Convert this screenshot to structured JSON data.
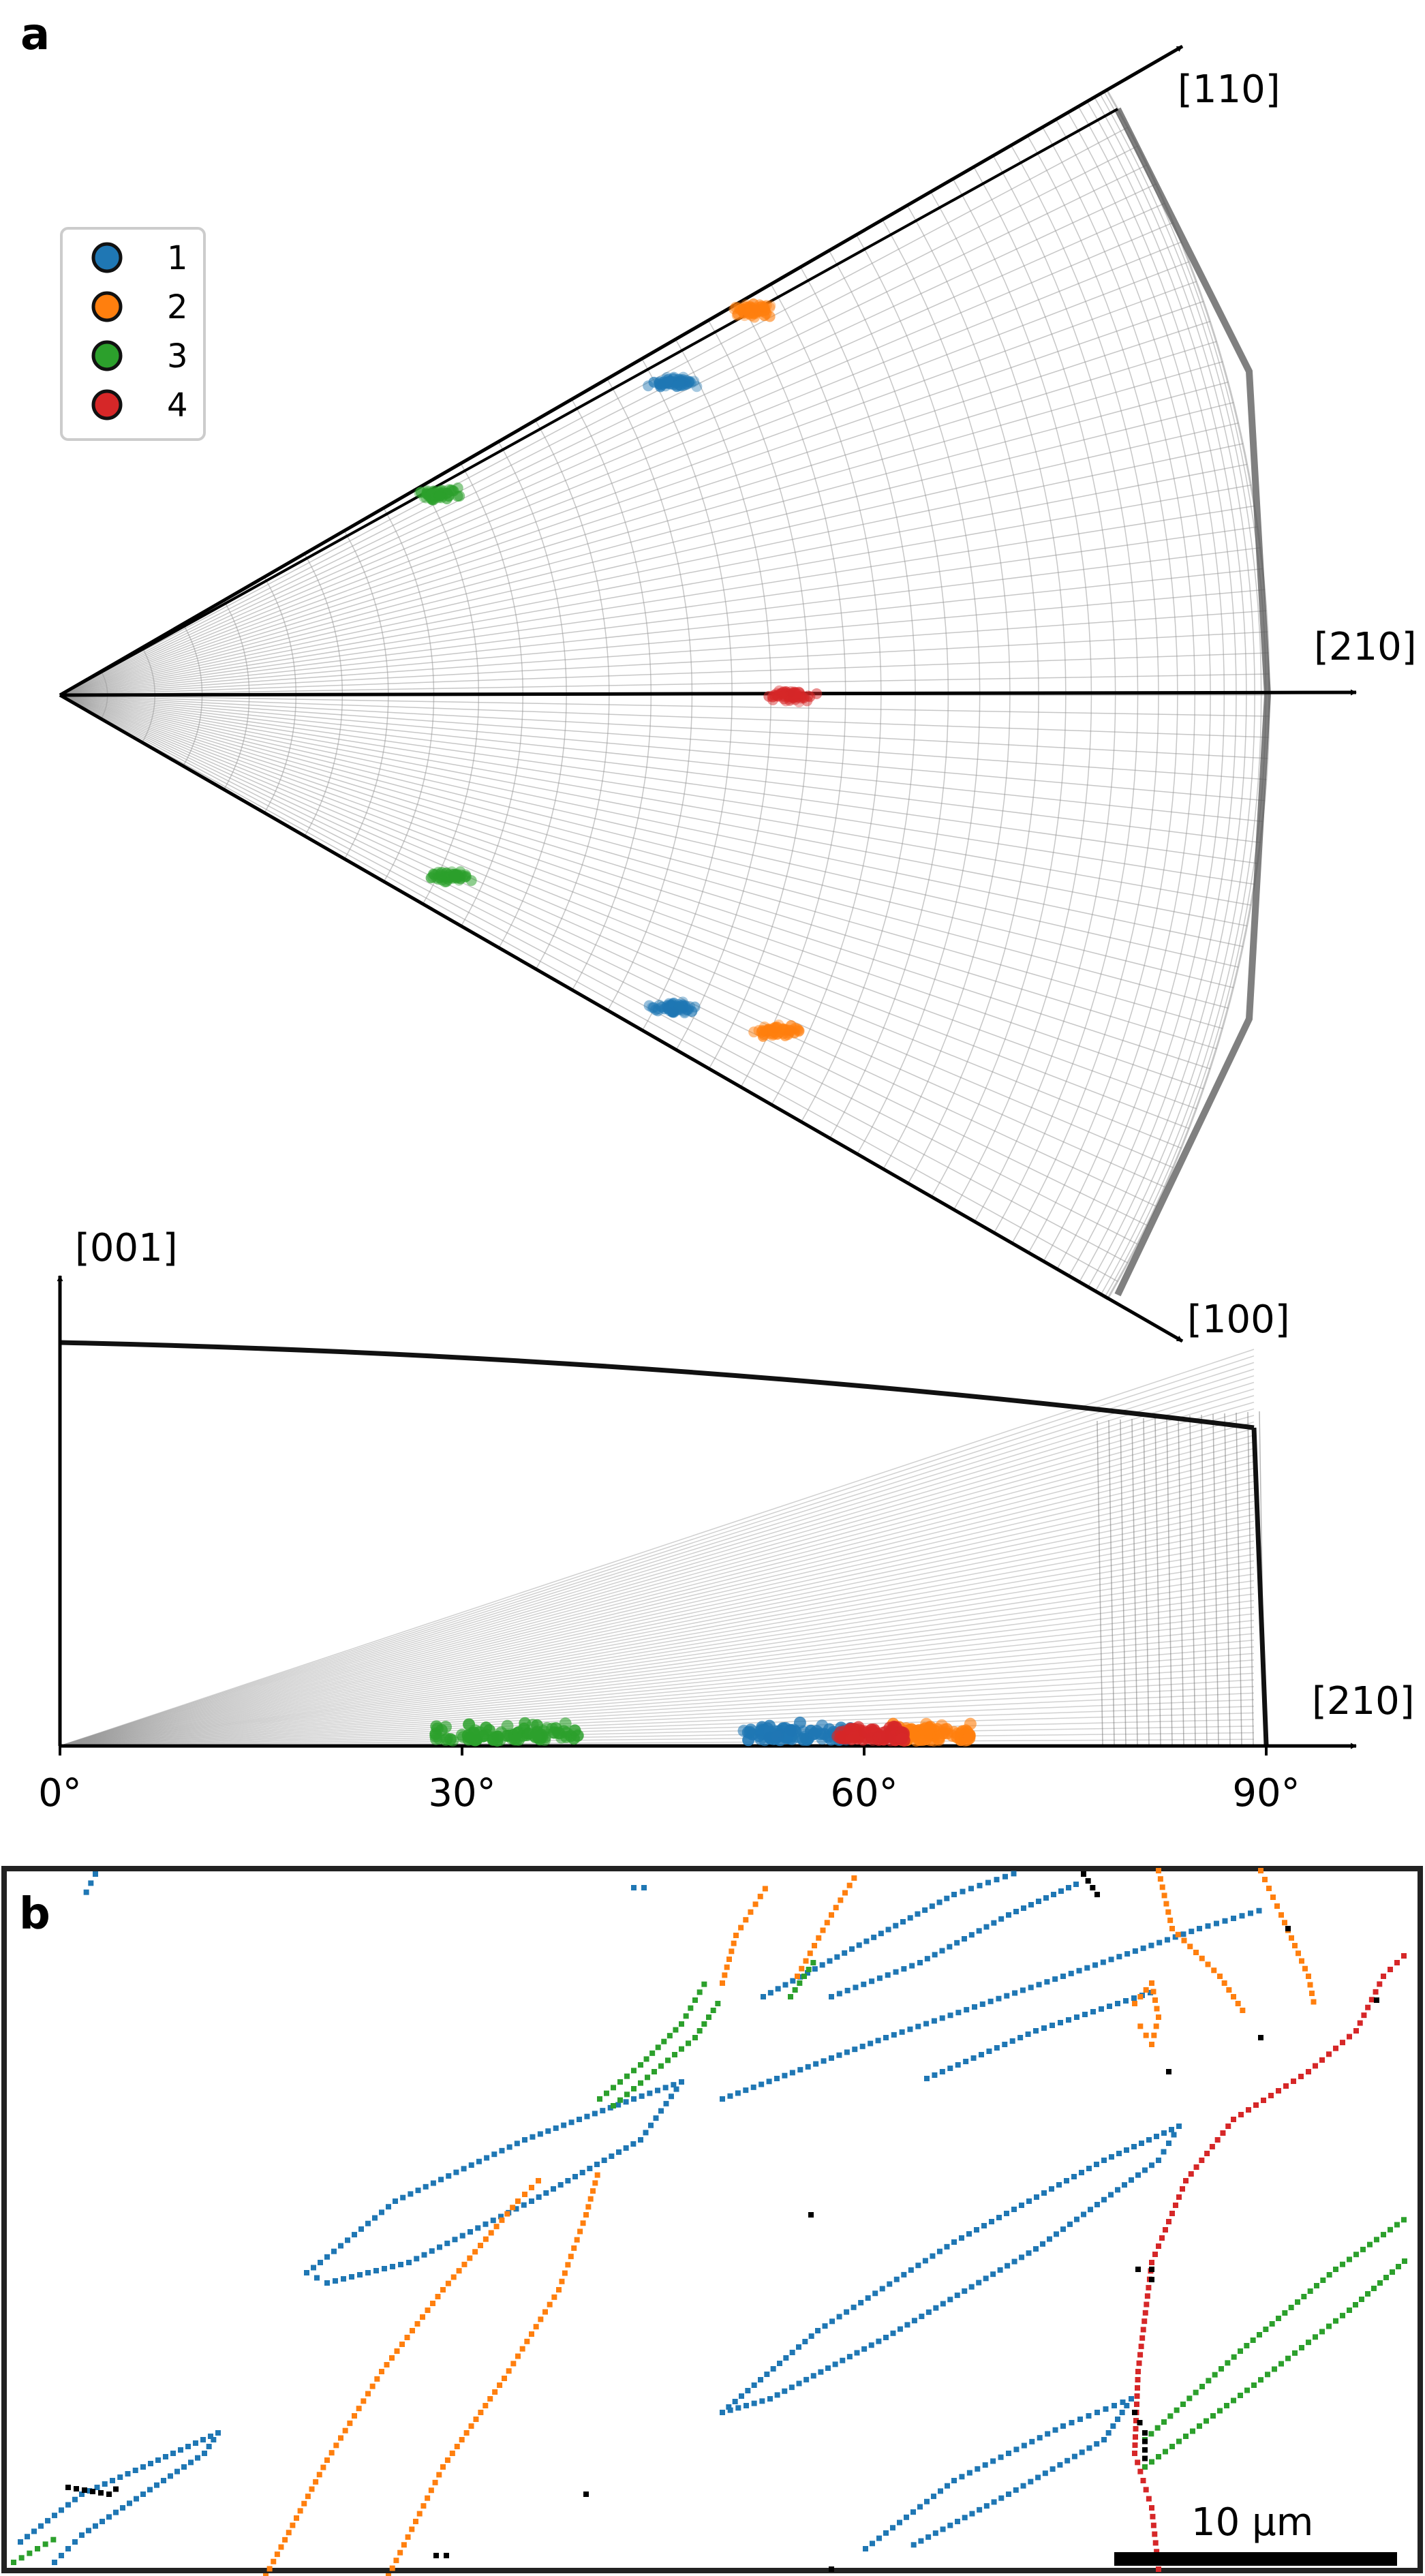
{
  "panel_a": {
    "label": "a",
    "axes": {
      "dir_110": "[110]",
      "dir_210": "[210]",
      "dir_100": "[100]",
      "dir_001": "[001]",
      "dir_210_lower": "[210]"
    },
    "ticks": [
      "0°",
      "30°",
      "60°",
      "90°"
    ],
    "legend": [
      {
        "label": "1",
        "color": "#1f77b4"
      },
      {
        "label": "2",
        "color": "#ff7f0e"
      },
      {
        "label": "3",
        "color": "#2ca02c"
      },
      {
        "label": "4",
        "color": "#d62728"
      }
    ]
  },
  "panel_b": {
    "label": "b",
    "scale_bar": "10 μm"
  },
  "chart_data": [
    {
      "type": "scatter",
      "view": "top projection",
      "azimuth_range_deg": [
        -30,
        30
      ],
      "polar_range_deg": [
        0,
        90
      ],
      "series": [
        {
          "name": "1",
          "color": "#1f77b4",
          "clusters": [
            {
              "azimuth": 27,
              "polar": 56
            },
            {
              "azimuth": -27,
              "polar": 56
            }
          ]
        },
        {
          "name": "2",
          "color": "#ff7f0e",
          "clusters": [
            {
              "azimuth": 29,
              "polar": 66
            },
            {
              "azimuth": -25,
              "polar": 66
            }
          ]
        },
        {
          "name": "3",
          "color": "#2ca02c",
          "clusters": [
            {
              "azimuth": 28,
              "polar": 31
            },
            {
              "azimuth": -25,
              "polar": 31
            }
          ]
        },
        {
          "name": "4",
          "color": "#d62728",
          "clusters": [
            {
              "azimuth": 0,
              "polar": 60
            }
          ]
        }
      ]
    },
    {
      "type": "scatter",
      "view": "side projection",
      "xlim": [
        0,
        90
      ],
      "xticks": [
        0,
        30,
        60,
        90
      ],
      "series": [
        {
          "name": "1",
          "color": "#1f77b4",
          "x_range": [
            51,
            59
          ]
        },
        {
          "name": "2",
          "color": "#ff7f0e",
          "x_range": [
            62,
            68
          ]
        },
        {
          "name": "3",
          "color": "#2ca02c",
          "x_range": [
            28,
            39
          ]
        },
        {
          "name": "4",
          "color": "#d62728",
          "x_range": [
            58,
            63
          ]
        }
      ]
    }
  ]
}
